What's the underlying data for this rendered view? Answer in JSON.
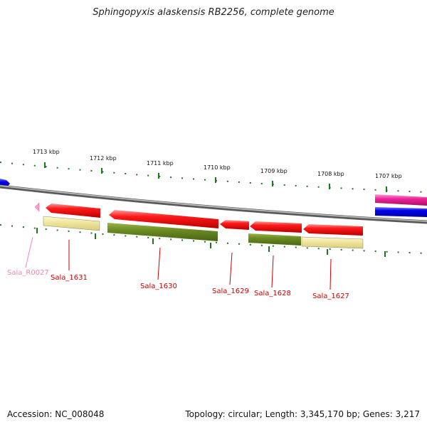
{
  "title": "Sphingopyxis alaskensis RB2256, complete genome",
  "footer": {
    "accession": "Accession: NC_008048",
    "summary": "Topology: circular; Length: 3,345,170 bp; Genes: 3,217"
  },
  "scale_labels": [
    "1713 kbp",
    "1712 kbp",
    "1711 kbp",
    "1710 kbp",
    "1709 kbp",
    "1708 kbp",
    "1707 kbp"
  ],
  "gene_labels": {
    "r0027": "Sala_R0027",
    "g1631": "Sala_1631",
    "g1630": "Sala_1630",
    "g1629": "Sala_1629",
    "g1628": "Sala_1628",
    "g1627": "Sala_1627"
  },
  "colors": {
    "cds": "#ee1111",
    "rna": "#ff88cc",
    "cog_yellow": "#eee49a",
    "cog_olive": "#6b8a22",
    "blue_feature": "#0000ee",
    "pink_feature": "#ee2299",
    "backbone": "#888888",
    "tick": "#1a7a1a",
    "label_red": "#cc0000",
    "label_pink": "#ee88bb"
  }
}
